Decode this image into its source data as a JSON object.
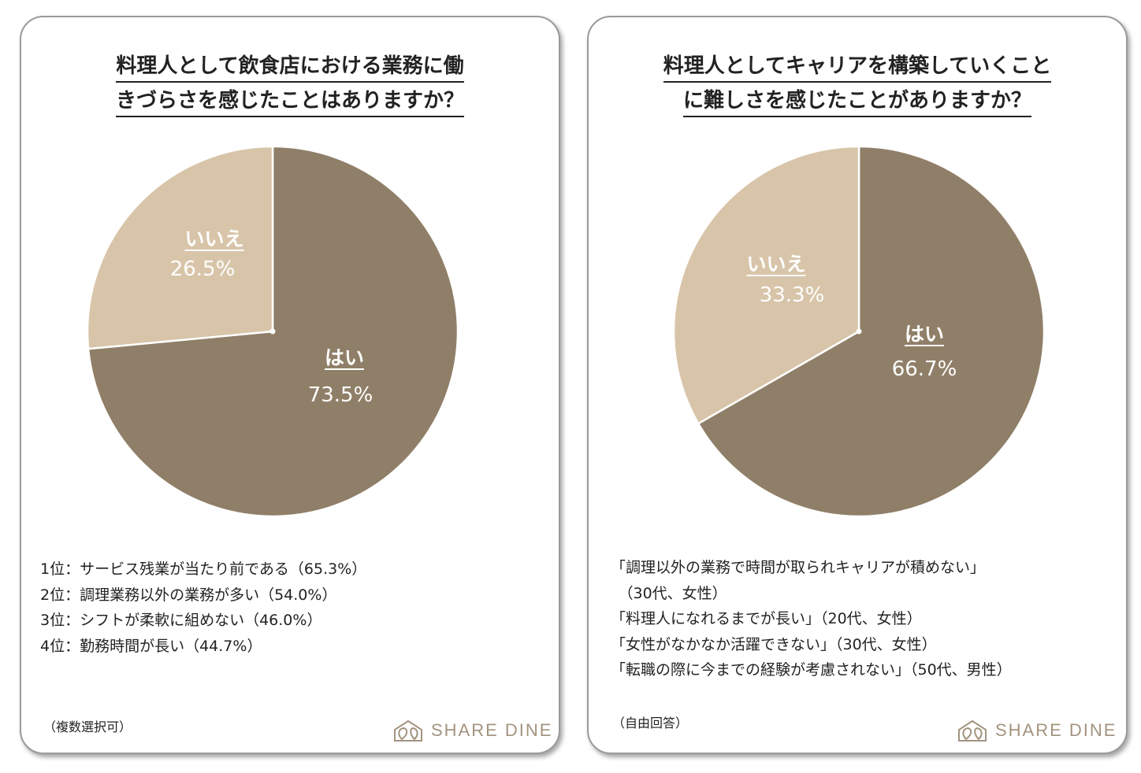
{
  "chart_data": [
    {
      "type": "pie",
      "title": "料理人として飲食店における業務に働きづらさを感じたことはありますか？",
      "title_lines": [
        "料理人として飲食店における業務に働",
        "きづらさを感じたことはありますか？"
      ],
      "slices": [
        {
          "label": "はい",
          "value": 73.5,
          "display": "73.5%",
          "color": "#907f68"
        },
        {
          "label": "いいえ",
          "value": 26.5,
          "display": "26.5%",
          "color": "#d8c5a9"
        }
      ]
    },
    {
      "type": "pie",
      "title": "料理人としてキャリアを構築していくことに難しさを感じたことがありますか？",
      "title_lines": [
        "料理人としてキャリアを構築していくこと",
        "に難しさを感じたことがありますか？"
      ],
      "slices": [
        {
          "label": "はい",
          "value": 66.7,
          "display": "66.7%",
          "color": "#907f68"
        },
        {
          "label": "いいえ",
          "value": 33.3,
          "display": "33.3%",
          "color": "#d8c5a9"
        }
      ]
    }
  ],
  "left_list": [
    "1位：サービス残業が当たり前である（65.3%）",
    "2位：調理業務以外の業務が多い（54.0%）",
    "3位：シフトが柔軟に組めない（46.0%）",
    "4位：勤務時間が長い（44.7%）"
  ],
  "left_note": "（複数選択可）",
  "right_list": [
    "「調理以外の業務で時間が取られキャリアが積めない」",
    "　（30代、女性）",
    "「料理人になれるまでが長い」（20代、女性）",
    "「女性がなかなか活躍できない」（30代、女性）",
    "「転職の際に今までの経験が考慮されない」（50代、男性）"
  ],
  "right_note": "（自由回答）",
  "brand": "SHARE DINE",
  "logo_icon": "share-dine-leaf-icon"
}
